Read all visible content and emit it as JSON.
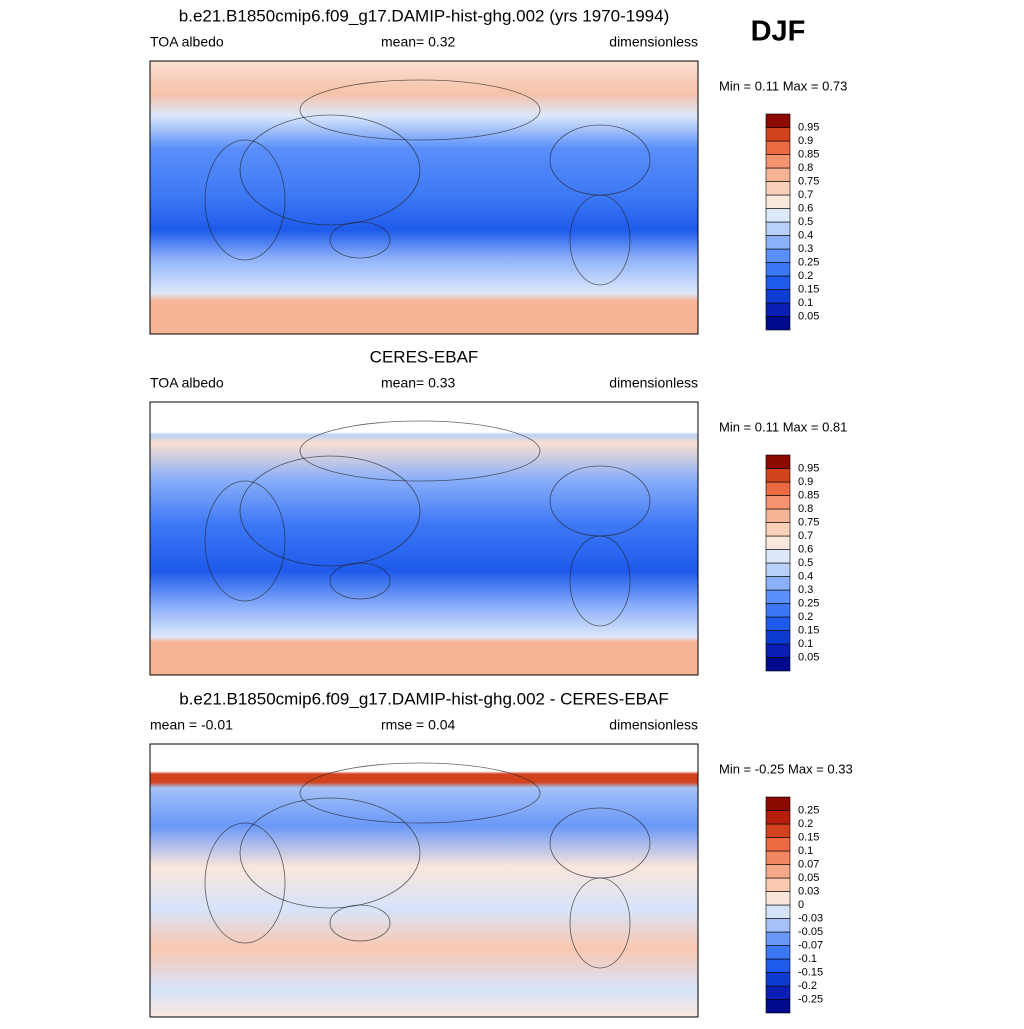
{
  "season": "DJF",
  "panels": [
    {
      "title": "b.e21.B1850cmip6.f09_g17.DAMIP-hist-ghg.002 (yrs 1970-1994)",
      "left": "TOA albedo",
      "center": "mean=   0.32",
      "right": "dimensionless",
      "minmax": "Min =   0.11 Max =   0.73",
      "colorbar": 0
    },
    {
      "title": "CERES-EBAF",
      "left": "TOA albedo",
      "center": "mean=   0.33",
      "right": "dimensionless",
      "minmax": "Min =   0.11 Max =   0.81",
      "colorbar": 0
    },
    {
      "title": "b.e21.B1850cmip6.f09_g17.DAMIP-hist-ghg.002 - CERES-EBAF",
      "left": "mean =  -0.01",
      "center": "rmse =   0.04",
      "right": "dimensionless",
      "minmax": "Min =  -0.25 Max =   0.33",
      "colorbar": 1
    }
  ],
  "colorbars": [
    {
      "labels": [
        "0.05",
        "0.1",
        "0.15",
        "0.2",
        "0.25",
        "0.3",
        "0.4",
        "0.5",
        "0.6",
        "0.7",
        "0.75",
        "0.8",
        "0.85",
        "0.9",
        "0.95"
      ],
      "colors": [
        "#000a8c",
        "#0a1eb4",
        "#0d3cd2",
        "#1e5aeb",
        "#3c78f5",
        "#5a8ffa",
        "#8cb0fa",
        "#b9d0f8",
        "#dde9fb",
        "#fbe8dc",
        "#fad0b8",
        "#f6b496",
        "#f59270",
        "#eb6a42",
        "#d2421c",
        "#8c0a00"
      ]
    },
    {
      "labels": [
        "-0.25",
        "-0.2",
        "-0.15",
        "-0.1",
        "-0.07",
        "-0.05",
        "-0.03",
        "0",
        "0.03",
        "0.05",
        "0.07",
        "0.1",
        "0.15",
        "0.2",
        "0.25"
      ],
      "colors": [
        "#000a8c",
        "#0a1eb4",
        "#0d3cd2",
        "#1e5aeb",
        "#3c78f5",
        "#6a98f8",
        "#a4c2f8",
        "#d6e4fb",
        "#fbe6dc",
        "#fbc8b0",
        "#f6a888",
        "#f28660",
        "#eb6a42",
        "#d2421c",
        "#b41e0a",
        "#8c0a00"
      ]
    }
  ]
}
